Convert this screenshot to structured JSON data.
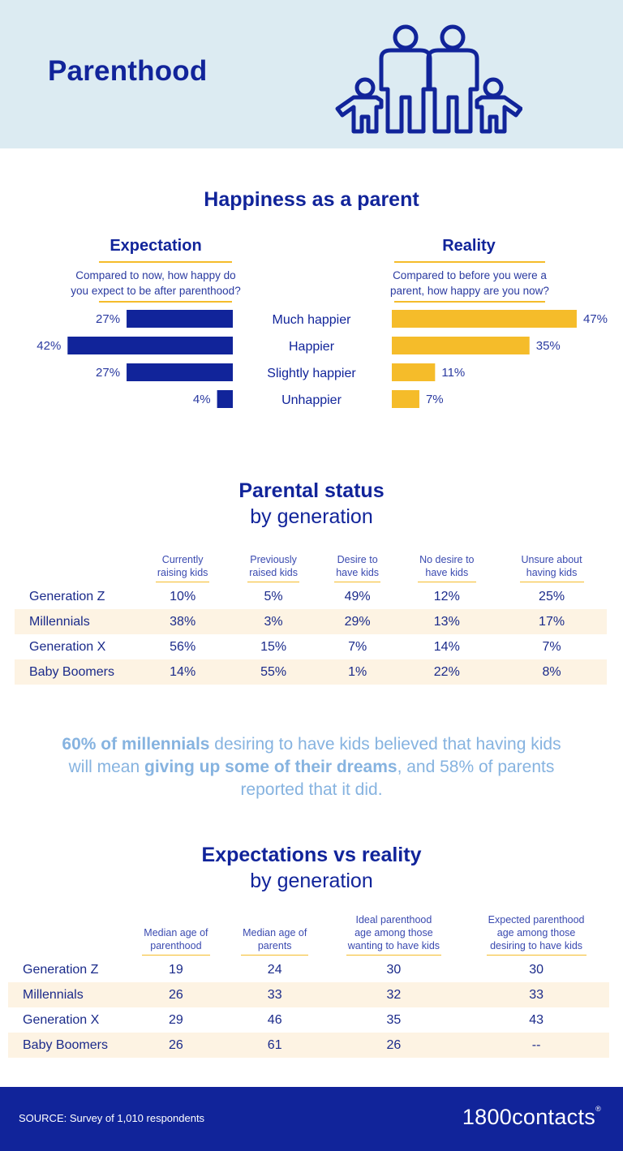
{
  "header": {
    "title": "Parenthood",
    "icon": "family-icon"
  },
  "happiness": {
    "title": "Happiness as a parent",
    "expectation": {
      "heading": "Expectation",
      "question_line1": "Compared to now, how happy do",
      "question_line2": "you expect to be after parenthood?"
    },
    "reality": {
      "heading": "Reality",
      "question_line1": "Compared to before you were a",
      "question_line2": "parent, how happy are you now?"
    }
  },
  "chart_data": {
    "type": "bar",
    "categories": [
      "Much happier",
      "Happier",
      "Slightly happier",
      "Unhappier"
    ],
    "series": [
      {
        "name": "Expectation",
        "values": [
          27,
          42,
          27,
          4
        ],
        "labels": [
          "27%",
          "42%",
          "27%",
          "4%"
        ],
        "color": "#11249a"
      },
      {
        "name": "Reality",
        "values": [
          47,
          35,
          11,
          7
        ],
        "labels": [
          "47%",
          "35%",
          "11%",
          "7%"
        ],
        "color": "#f5bc2a"
      }
    ]
  },
  "parental_status": {
    "title_bold": "Parental status",
    "title_sub": "by generation",
    "headers": [
      [
        "Currently",
        "raising kids"
      ],
      [
        "Previously",
        "raised kids"
      ],
      [
        "Desire to",
        "have kids"
      ],
      [
        "No desire to",
        "have kids"
      ],
      [
        "Unsure about",
        "having kids"
      ]
    ],
    "rows": [
      {
        "label": "Generation Z",
        "values": [
          "10%",
          "5%",
          "49%",
          "12%",
          "25%"
        ]
      },
      {
        "label": "Millennials",
        "values": [
          "38%",
          "3%",
          "29%",
          "13%",
          "17%"
        ]
      },
      {
        "label": "Generation X",
        "values": [
          "56%",
          "15%",
          "7%",
          "14%",
          "7%"
        ]
      },
      {
        "label": "Baby Boomers",
        "values": [
          "14%",
          "55%",
          "1%",
          "22%",
          "8%"
        ]
      }
    ]
  },
  "quote": {
    "bold1": "60% of millennials",
    "text1": " desiring to have kids believed that having kids will mean ",
    "bold2": "giving up some of their dreams",
    "text2": ", and 58% of parents reported that it did."
  },
  "expectations": {
    "title_bold": "Expectations vs reality",
    "title_sub": "by generation",
    "headers": [
      [
        "Median age of",
        "parenthood"
      ],
      [
        "Median age of",
        "parents"
      ],
      [
        "Ideal parenthood",
        "age among those",
        "wanting to have kids"
      ],
      [
        "Expected parenthood",
        "age among those",
        "desiring to have kids"
      ]
    ],
    "rows": [
      {
        "label": "Generation Z",
        "values": [
          "19",
          "24",
          "30",
          "30"
        ]
      },
      {
        "label": "Millennials",
        "values": [
          "26",
          "33",
          "32",
          "33"
        ]
      },
      {
        "label": "Generation X",
        "values": [
          "29",
          "46",
          "35",
          "43"
        ]
      },
      {
        "label": "Baby Boomers",
        "values": [
          "26",
          "61",
          "26",
          "--"
        ]
      }
    ]
  },
  "footer": {
    "source": "SOURCE: Survey of 1,010 respondents",
    "logo": "1800contacts",
    "logo_mark": "®"
  }
}
